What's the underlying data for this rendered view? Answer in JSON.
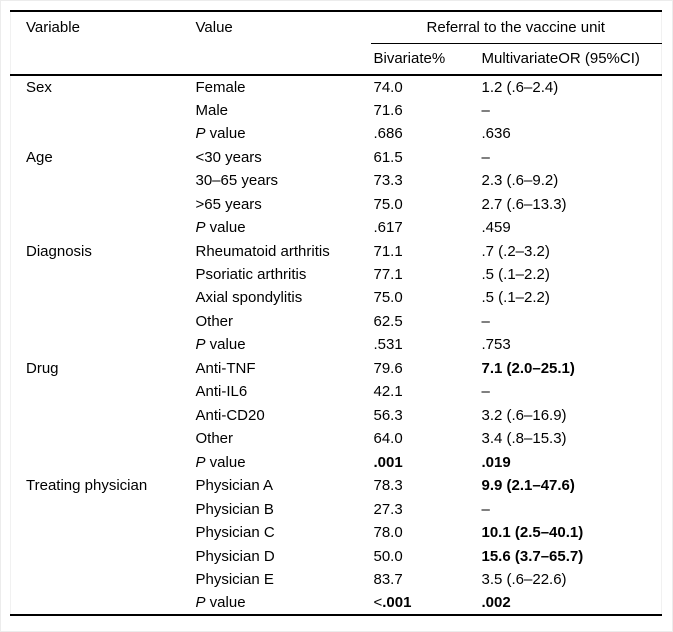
{
  "header": {
    "variable": "Variable",
    "value": "Value",
    "span": "Referral to the vaccine unit",
    "bivariate": "Bivariate%",
    "multivariate": "MultivariateOR (95%CI)"
  },
  "colors": {
    "text": "#000000",
    "background": "#ffffff",
    "rule": "#000000"
  },
  "groups": [
    {
      "variable": "Sex",
      "rows": [
        {
          "value": [
            {
              "t": "Female"
            }
          ],
          "biv": [
            {
              "t": "74.0"
            }
          ],
          "multi": [
            {
              "t": "1.2 (.6–2.4)"
            }
          ]
        },
        {
          "value": [
            {
              "t": "Male"
            }
          ],
          "biv": [
            {
              "t": "71.6"
            }
          ],
          "multi": [
            {
              "t": "–"
            }
          ]
        },
        {
          "value": [
            {
              "t": "P",
              "i": 1
            },
            {
              "t": " value"
            }
          ],
          "biv": [
            {
              "t": ".686"
            }
          ],
          "multi": [
            {
              "t": ".636"
            }
          ]
        }
      ]
    },
    {
      "variable": "Age",
      "rows": [
        {
          "value": [
            {
              "t": "<30 years"
            }
          ],
          "biv": [
            {
              "t": "61.5"
            }
          ],
          "multi": [
            {
              "t": "–"
            }
          ]
        },
        {
          "value": [
            {
              "t": "30–65 years"
            }
          ],
          "biv": [
            {
              "t": "73.3"
            }
          ],
          "multi": [
            {
              "t": "2.3 (.6–9.2)"
            }
          ]
        },
        {
          "value": [
            {
              "t": ">65 years"
            }
          ],
          "biv": [
            {
              "t": "75.0"
            }
          ],
          "multi": [
            {
              "t": "2.7 (.6–13.3)"
            }
          ]
        },
        {
          "value": [
            {
              "t": "P",
              "i": 1
            },
            {
              "t": " value"
            }
          ],
          "biv": [
            {
              "t": ".617"
            }
          ],
          "multi": [
            {
              "t": ".459"
            }
          ]
        }
      ]
    },
    {
      "variable": "Diagnosis",
      "rows": [
        {
          "value": [
            {
              "t": "Rheumatoid arthritis"
            }
          ],
          "biv": [
            {
              "t": "71.1"
            }
          ],
          "multi": [
            {
              "t": ".7 (.2–3.2)"
            }
          ]
        },
        {
          "value": [
            {
              "t": "Psoriatic arthritis"
            }
          ],
          "biv": [
            {
              "t": "77.1"
            }
          ],
          "multi": [
            {
              "t": ".5 (.1–2.2)"
            }
          ]
        },
        {
          "value": [
            {
              "t": "Axial spondylitis"
            }
          ],
          "biv": [
            {
              "t": "75.0"
            }
          ],
          "multi": [
            {
              "t": ".5 (.1–2.2)"
            }
          ]
        },
        {
          "value": [
            {
              "t": "Other"
            }
          ],
          "biv": [
            {
              "t": "62.5"
            }
          ],
          "multi": [
            {
              "t": "–"
            }
          ]
        },
        {
          "value": [
            {
              "t": "P",
              "i": 1
            },
            {
              "t": " value"
            }
          ],
          "biv": [
            {
              "t": ".531"
            }
          ],
          "multi": [
            {
              "t": ".753"
            }
          ]
        }
      ]
    },
    {
      "variable": "Drug",
      "rows": [
        {
          "value": [
            {
              "t": "Anti-TNF"
            }
          ],
          "biv": [
            {
              "t": "79.6"
            }
          ],
          "multi": [
            {
              "t": "7.1 (2.0–25.1)",
              "b": 1
            }
          ]
        },
        {
          "value": [
            {
              "t": "Anti-IL6"
            }
          ],
          "biv": [
            {
              "t": "42.1"
            }
          ],
          "multi": [
            {
              "t": "–"
            }
          ]
        },
        {
          "value": [
            {
              "t": "Anti-CD20"
            }
          ],
          "biv": [
            {
              "t": "56.3"
            }
          ],
          "multi": [
            {
              "t": "3.2 (.6–16.9)"
            }
          ]
        },
        {
          "value": [
            {
              "t": "Other"
            }
          ],
          "biv": [
            {
              "t": "64.0"
            }
          ],
          "multi": [
            {
              "t": "3.4 (.8–15.3)"
            }
          ]
        },
        {
          "value": [
            {
              "t": "P",
              "i": 1
            },
            {
              "t": " value"
            }
          ],
          "biv": [
            {
              "t": ".001",
              "b": 1
            }
          ],
          "multi": [
            {
              "t": ".019",
              "b": 1
            }
          ]
        }
      ]
    },
    {
      "variable": "Treating physician",
      "rows": [
        {
          "value": [
            {
              "t": "Physician A"
            }
          ],
          "biv": [
            {
              "t": "78.3"
            }
          ],
          "multi": [
            {
              "t": "9.9 (2.1–47.6)",
              "b": 1
            }
          ]
        },
        {
          "value": [
            {
              "t": "Physician B"
            }
          ],
          "biv": [
            {
              "t": "27.3"
            }
          ],
          "multi": [
            {
              "t": "–"
            }
          ]
        },
        {
          "value": [
            {
              "t": "Physician C"
            }
          ],
          "biv": [
            {
              "t": "78.0"
            }
          ],
          "multi": [
            {
              "t": "10.1 (2.5–40.1)",
              "b": 1
            }
          ]
        },
        {
          "value": [
            {
              "t": "Physician D"
            }
          ],
          "biv": [
            {
              "t": "50.0"
            }
          ],
          "multi": [
            {
              "t": "15.6 (3.7–65.7)",
              "b": 1
            }
          ]
        },
        {
          "value": [
            {
              "t": "Physician E"
            }
          ],
          "biv": [
            {
              "t": "83.7"
            }
          ],
          "multi": [
            {
              "t": "3.5 (.6–22.6)"
            }
          ]
        },
        {
          "value": [
            {
              "t": "P",
              "i": 1
            },
            {
              "t": " value"
            }
          ],
          "biv": [
            {
              "t": "<"
            },
            {
              "t": ".001",
              "b": 1
            }
          ],
          "multi": [
            {
              "t": ".002",
              "b": 1
            }
          ]
        }
      ]
    }
  ]
}
